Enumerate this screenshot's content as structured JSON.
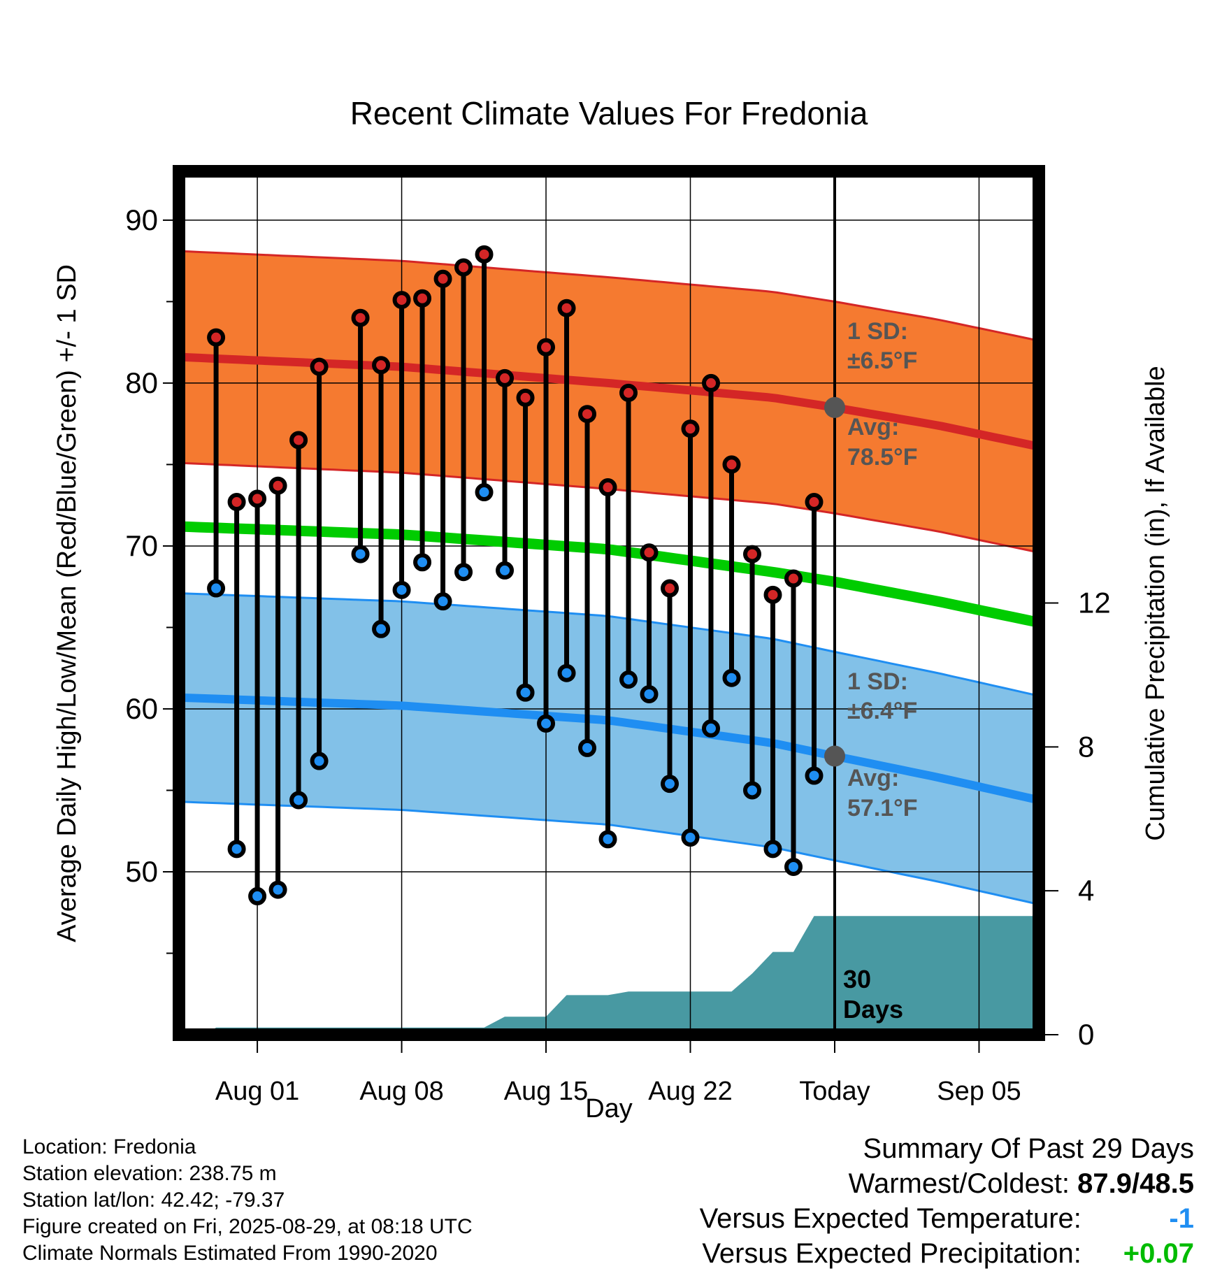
{
  "chart_data": {
    "type": "line",
    "title": "Recent Climate Values For Fredonia",
    "xlabel": "Day",
    "ylabel_left": "Average Daily High/Low/Mean (Red/Blue/Green) +/- 1 SD",
    "ylabel_right": "Cumulative Precipitation (in), If Available",
    "x_ticks": [
      "Aug 01",
      "Aug 08",
      "Aug 15",
      "Aug 22",
      "Today",
      "Sep 05"
    ],
    "y_ticks": [
      "50",
      "60",
      "70",
      "80",
      "90"
    ],
    "y2_ticks": [
      "0",
      "4",
      "8",
      "12"
    ],
    "ylim": [
      40,
      93
    ],
    "y2lim": [
      0,
      24
    ],
    "day_range": [
      -31.8,
      9.9
    ],
    "colors": {
      "high": "#d42626",
      "high_band": "#f57a30",
      "low": "#1f8ef2",
      "low_band": "#82c1e8",
      "mean": "#00cc00",
      "precip": "#4899a2"
    },
    "normals": {
      "days": [
        -31.8,
        -21,
        -11,
        -3,
        0,
        5,
        9.9
      ],
      "high_avg": [
        81.6,
        81.0,
        80.0,
        79.1,
        78.5,
        77.4,
        76.1
      ],
      "high_sd": 6.5,
      "low_avg": [
        60.7,
        60.2,
        59.3,
        57.9,
        57.1,
        55.8,
        54.4
      ],
      "low_sd": 6.4,
      "mean_avg": [
        71.2,
        70.7,
        69.8,
        68.4,
        67.8,
        66.6,
        65.3
      ]
    },
    "annotations": {
      "high_sd_label": "1 SD:",
      "high_sd_value": "±6.5°F",
      "high_avg_label": "Avg:",
      "high_avg_value": "78.5°F",
      "low_sd_label": "1 SD:",
      "low_sd_value": "±6.4°F",
      "low_avg_label": "Avg:",
      "low_avg_value": "57.1°F",
      "period_number": "30",
      "period_unit": "Days"
    },
    "observed": {
      "days": [
        -30,
        -29,
        -28,
        -27,
        -26,
        -25,
        -23,
        -22,
        -21,
        -20,
        -19,
        -18,
        -17,
        -16,
        -15,
        -14,
        -13,
        -12,
        -11,
        -10,
        -9,
        -8,
        -7,
        -6,
        -5,
        -4,
        -3,
        -2,
        -1
      ],
      "high": [
        82.8,
        72.7,
        72.9,
        73.7,
        76.5,
        81.0,
        84.0,
        81.1,
        85.1,
        85.2,
        86.4,
        87.1,
        87.9,
        80.3,
        79.1,
        82.2,
        84.6,
        78.1,
        73.6,
        79.4,
        69.6,
        67.4,
        77.2,
        80.0,
        75.0,
        69.5,
        67.0,
        68.0,
        72.7
      ],
      "low": [
        67.4,
        51.4,
        48.5,
        48.9,
        54.4,
        56.8,
        69.5,
        64.9,
        67.3,
        69.0,
        66.6,
        68.4,
        73.3,
        68.5,
        61.0,
        59.1,
        62.2,
        57.6,
        52.0,
        61.8,
        60.9,
        55.4,
        52.1,
        58.8,
        61.9,
        55.0,
        51.4,
        50.3,
        55.9
      ]
    },
    "precip_cumulative": {
      "days": [
        -30.5,
        -30,
        -19,
        -18,
        -17,
        -16,
        -15,
        -14,
        -13,
        -12,
        -11,
        -10,
        -9,
        -8,
        -7,
        -6,
        -5,
        -4,
        -3,
        -2,
        -1,
        0,
        9.9
      ],
      "inches": [
        0,
        0.2,
        0.2,
        0.2,
        0.2,
        0.5,
        0.5,
        0.5,
        1.1,
        1.1,
        1.1,
        1.2,
        1.2,
        1.2,
        1.2,
        1.2,
        1.2,
        1.7,
        2.3,
        2.3,
        3.3,
        3.3,
        3.3
      ]
    }
  },
  "info": {
    "location": "Location: Fredonia",
    "elevation": "Station elevation: 238.75 m",
    "latlon": "Station lat/lon: 42.42; -79.37",
    "created": "Figure created on Fri, 2025-08-29, at 08:18 UTC",
    "normals_period": "Climate Normals Estimated From 1990-2020"
  },
  "summary": {
    "title": "Summary Of Past 29 Days",
    "warmest_label": "Warmest/Coldest:",
    "warmest_value": "87.9/48.5",
    "temp_label": "Versus Expected Temperature:",
    "temp_value": "-1",
    "temp_color": "#1f8ef2",
    "precip_label": "Versus Expected Precipitation:",
    "precip_value": "+0.07",
    "precip_color": "#00bb00"
  }
}
